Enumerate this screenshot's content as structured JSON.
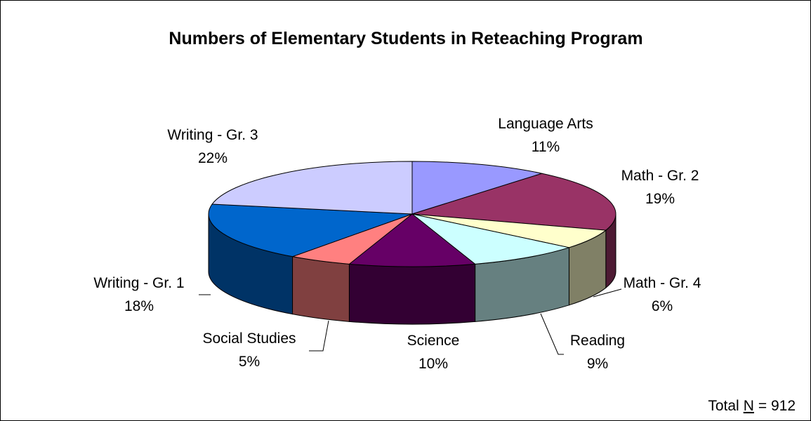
{
  "chart_data": {
    "type": "pie3d",
    "title": "Numbers of Elementary Students in Reteaching Program",
    "categories": [
      "Language Arts",
      "Math - Gr. 2",
      "Math - Gr. 4",
      "Reading",
      "Science",
      "Social Studies",
      "Writing - Gr. 1",
      "Writing - Gr. 3"
    ],
    "values": [
      11,
      19,
      6,
      9,
      10,
      5,
      18,
      22
    ],
    "value_labels": [
      "11%",
      "19%",
      "6%",
      "9%",
      "10%",
      "5%",
      "18%",
      "22%"
    ],
    "colors": [
      "#9999ff",
      "#993366",
      "#ffffcc",
      "#ccffff",
      "#660066",
      "#ff8080",
      "#0066cc",
      "#ccccff"
    ],
    "note": {
      "prefix": "Total",
      "symbol": "N",
      "suffix": "= 912"
    }
  }
}
